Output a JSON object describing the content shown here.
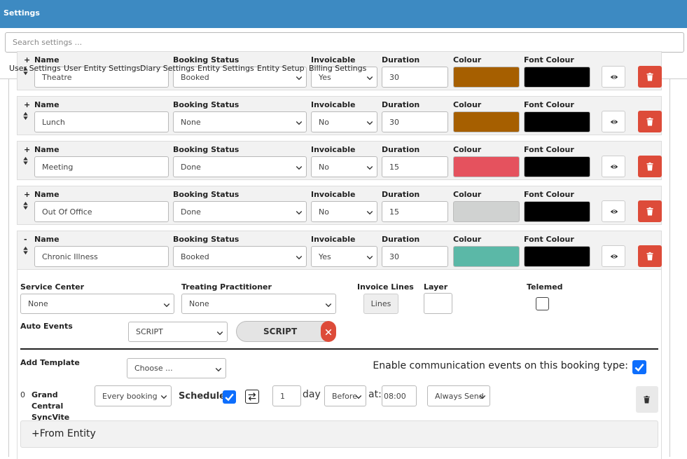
{
  "header": {
    "title": "Settings"
  },
  "search": {
    "placeholder": "Search settings ..."
  },
  "tabs": [
    {
      "label": "User Settings",
      "active": false
    },
    {
      "label": "User Entity Settings",
      "active": false
    },
    {
      "label": "Diary Settings",
      "active": true
    },
    {
      "label": "Entity Settings",
      "active": false
    },
    {
      "label": "Entity Setup",
      "active": false
    },
    {
      "label": "Billing Settings",
      "active": false
    }
  ],
  "columns": {
    "name": "Name",
    "booking_status": "Booking Status",
    "invoicable": "Invoicable",
    "duration": "Duration",
    "colour": "Colour",
    "font_colour": "Font Colour"
  },
  "rows": [
    {
      "toggle": "+",
      "name": "Theatre",
      "booking_status": "Booked",
      "invoicable": "Yes",
      "duration": 30,
      "colour": "#a65f00",
      "font_colour": "#000000"
    },
    {
      "toggle": "+",
      "name": "Lunch",
      "booking_status": "None",
      "invoicable": "No",
      "duration": 30,
      "colour": "#a65f00",
      "font_colour": "#000000"
    },
    {
      "toggle": "+",
      "name": "Meeting",
      "booking_status": "Done",
      "invoicable": "No",
      "duration": 15,
      "colour": "#e5525e",
      "font_colour": "#000000"
    },
    {
      "toggle": "+",
      "name": "Out Of Office",
      "booking_status": "Done",
      "invoicable": "No",
      "duration": 15,
      "colour": "#d0d2d1",
      "font_colour": "#000000"
    },
    {
      "toggle": "-",
      "name": "Chronic Illness",
      "booking_status": "Booked",
      "invoicable": "Yes",
      "duration": 30,
      "colour": "#5bb8a7",
      "font_colour": "#000000"
    }
  ],
  "details": {
    "service_center": {
      "label": "Service Center",
      "value": "None"
    },
    "treating_practitioner": {
      "label": "Treating Practitioner",
      "value": "None"
    },
    "invoice_lines": {
      "label": "Invoice Lines",
      "button": "Lines"
    },
    "layer": {
      "label": "Layer"
    },
    "telemed": {
      "label": "Telemed",
      "checked": false
    },
    "auto_events": {
      "label": "Auto Events",
      "select": "SCRIPT",
      "tag": "SCRIPT"
    },
    "add_template": {
      "label": "Add Template",
      "select": "Choose ..."
    },
    "enable_comm": {
      "label": "Enable communication events on this booking type:",
      "checked": true
    },
    "template_row": {
      "index": 0,
      "name": "Grand Central SyncVite",
      "trigger": "Every booking",
      "schedule_label": "Schedule:",
      "schedule_checked": true,
      "amount": 1,
      "unit": "day",
      "direction": "Before",
      "at_label": "at:",
      "time": "08:00",
      "send": "Always Send"
    },
    "from_entity": "+From Entity"
  }
}
